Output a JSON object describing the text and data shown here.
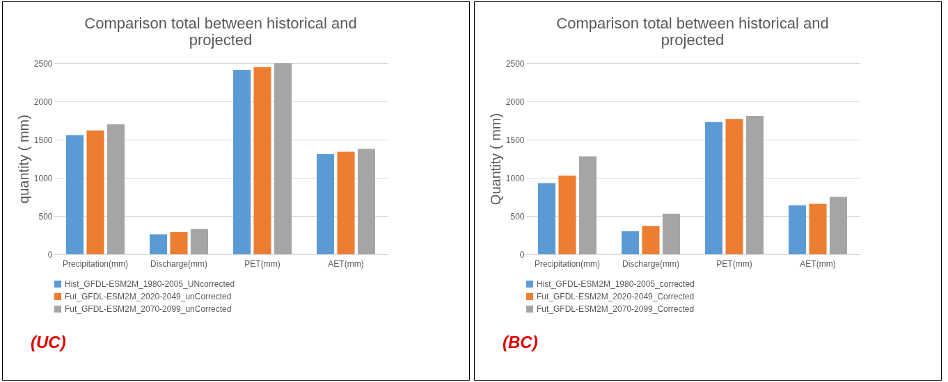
{
  "chart_data": [
    {
      "type": "bar",
      "title": "Comparison total between historical and projected",
      "ylabel": "quantity ( mm)",
      "categories": [
        "Precipitation(mm)",
        "Discharge(mm)",
        "PET(mm)",
        "AET(mm)"
      ],
      "series": [
        {
          "name": "Hist_GFDL-ESM2M_1980-2005_UNcorrected",
          "color": "#5b9bd5",
          "values": [
            1560,
            260,
            2410,
            1310
          ]
        },
        {
          "name": "Fut_GFDL-ESM2M_2020-2049_unCorrected",
          "color": "#ed7d31",
          "values": [
            1620,
            290,
            2450,
            1340
          ]
        },
        {
          "name": "Fut_GFDL-ESM2M_2070-2099_unCorrected",
          "color": "#a5a5a5",
          "values": [
            1700,
            330,
            2500,
            1380
          ]
        }
      ],
      "ylim": [
        0,
        2500
      ],
      "yticks": [
        0,
        500,
        1000,
        1500,
        2000,
        2500
      ],
      "grid": "y",
      "legend": "bottom",
      "annotations": [
        "(UC)"
      ]
    },
    {
      "type": "bar",
      "title": "Comparison total between historical and projected",
      "ylabel": "Quantity ( mm)",
      "categories": [
        "Precipitation(mm)",
        "Discharge(mm)",
        "PET(mm)",
        "AET(mm)"
      ],
      "series": [
        {
          "name": "Hist_GFDL-ESM2M_1980-2005_corrected",
          "color": "#5b9bd5",
          "values": [
            930,
            300,
            1730,
            640
          ]
        },
        {
          "name": "Fut_GFDL-ESM2M_2020-2049_Corrected",
          "color": "#ed7d31",
          "values": [
            1030,
            370,
            1770,
            660
          ]
        },
        {
          "name": "Fut_GFDL-ESM2M_2070-2099_Corrected",
          "color": "#a5a5a5",
          "values": [
            1280,
            530,
            1810,
            750
          ]
        }
      ],
      "ylim": [
        0,
        2500
      ],
      "yticks": [
        0,
        500,
        1000,
        1500,
        2000,
        2500
      ],
      "grid": "y",
      "legend": "bottom",
      "annotations": [
        "(BC)"
      ]
    }
  ]
}
